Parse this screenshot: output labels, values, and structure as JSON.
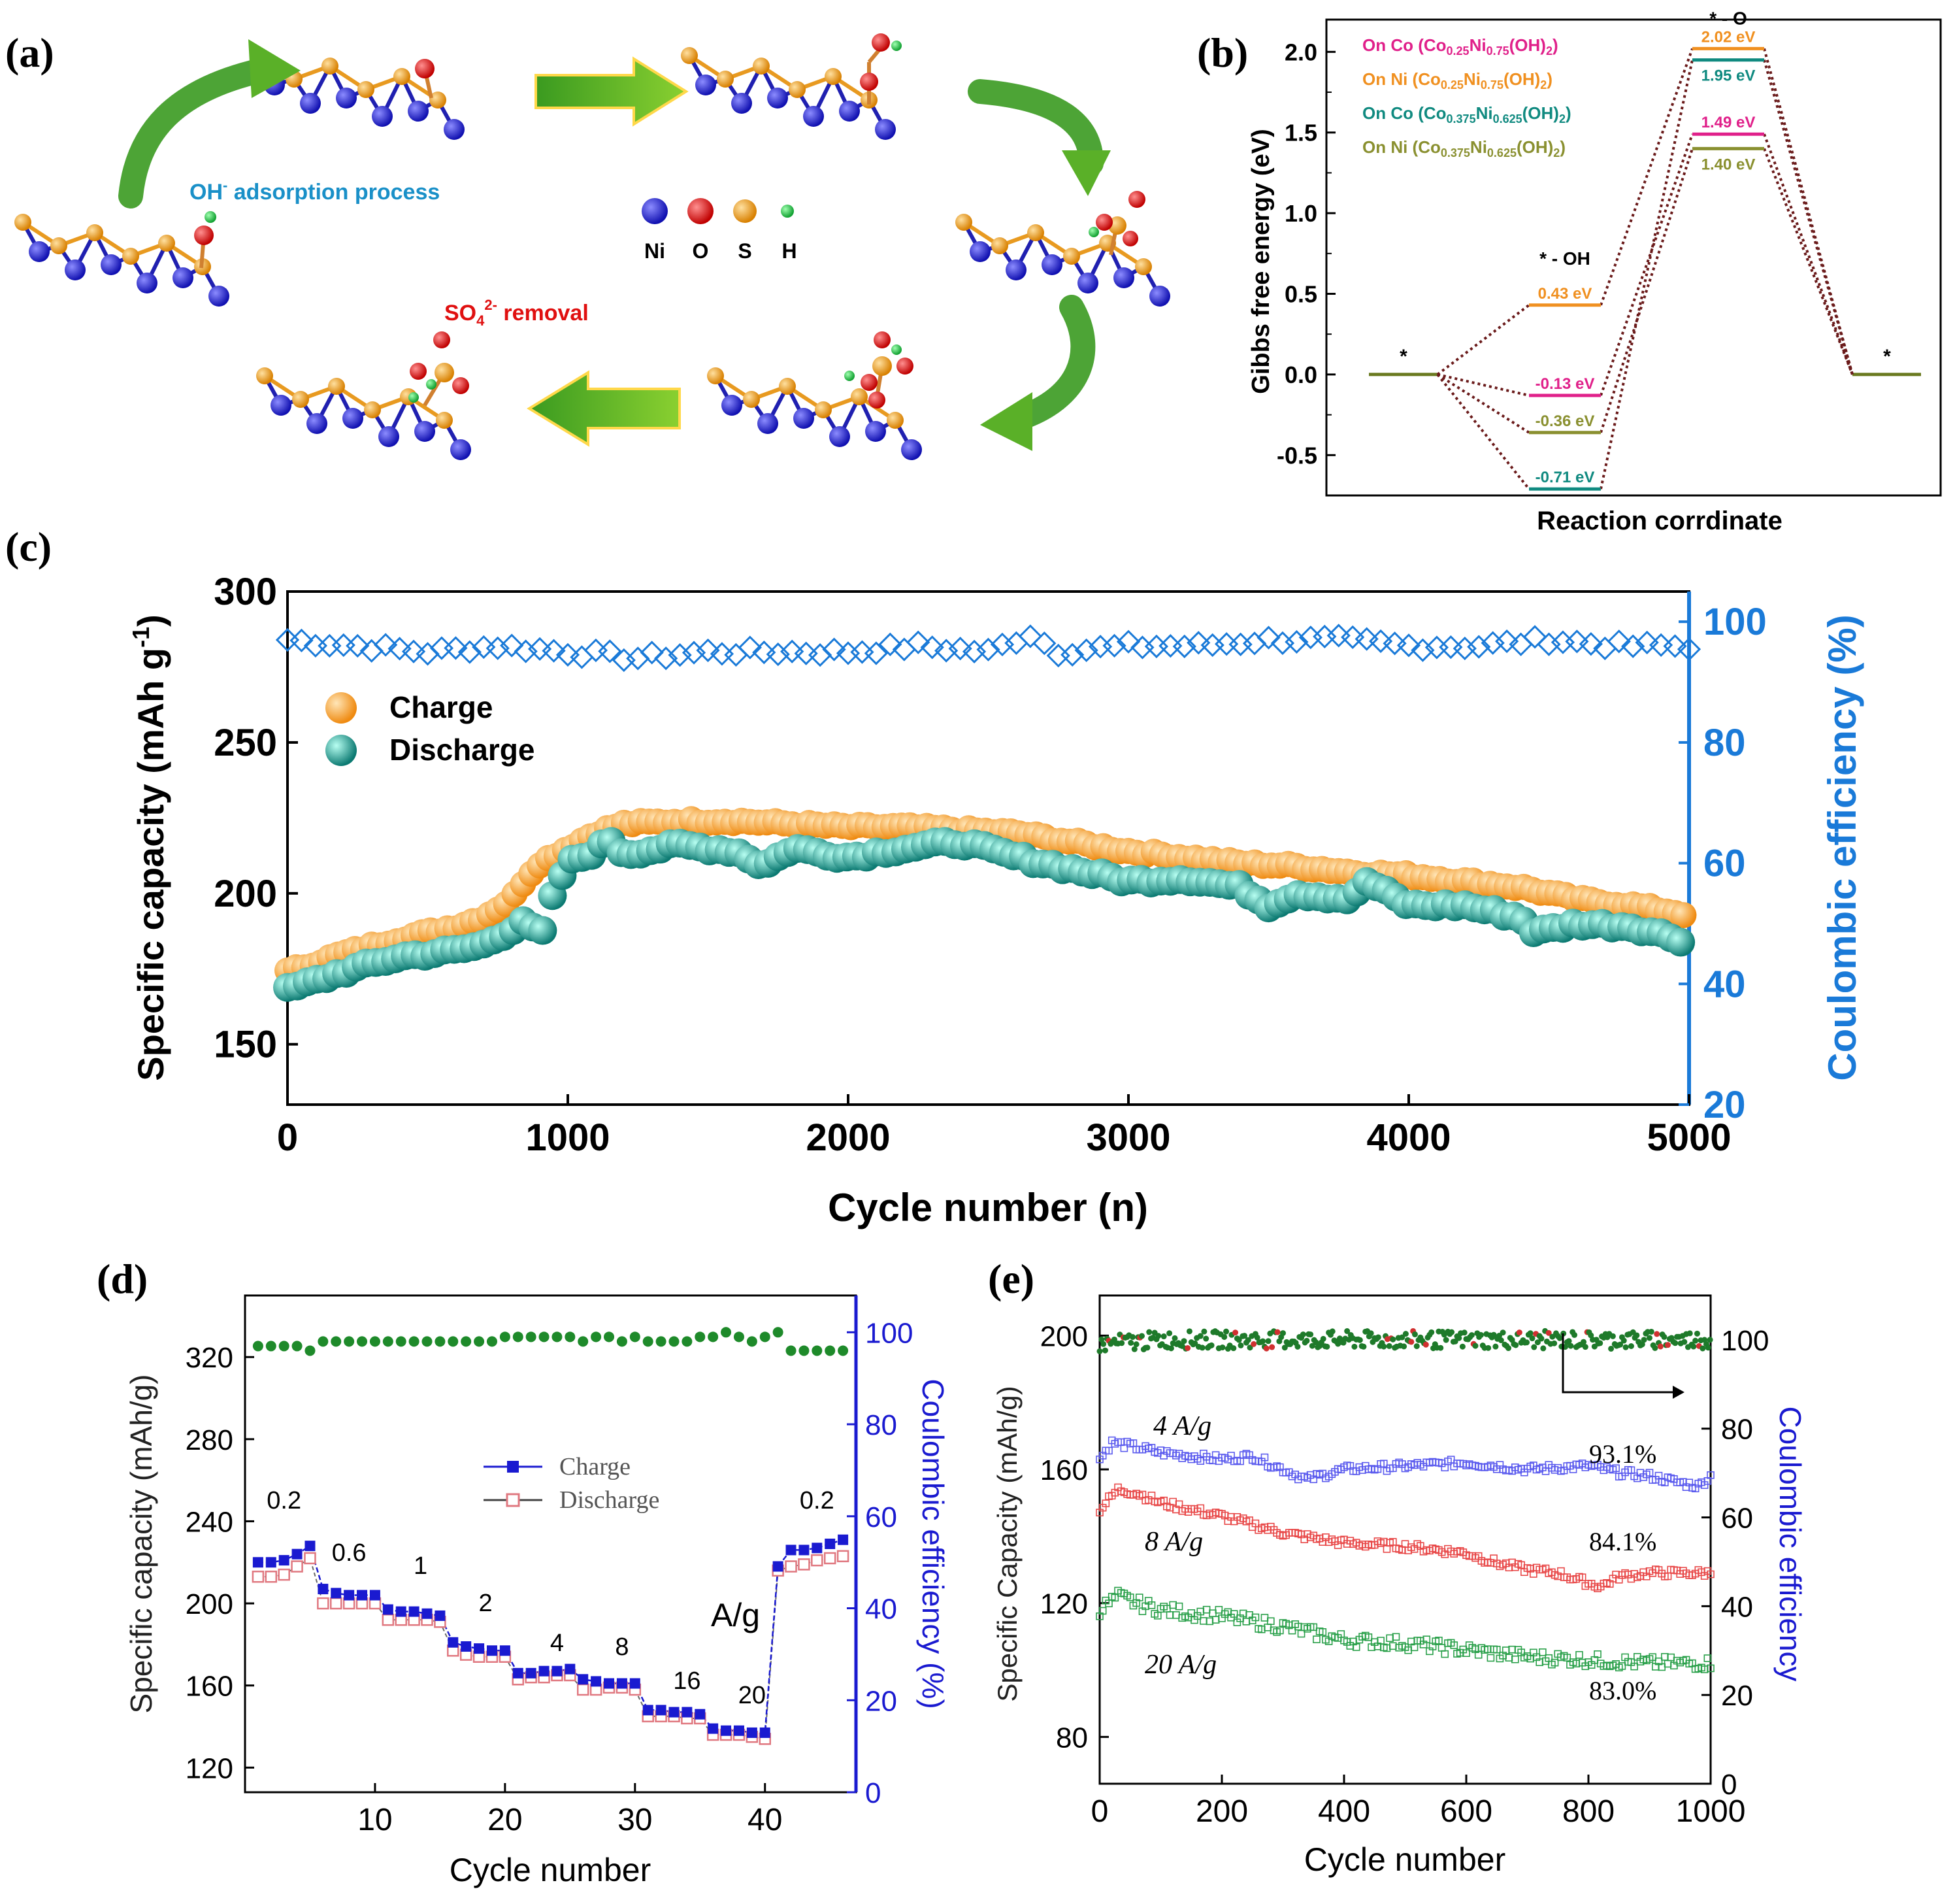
{
  "panel_labels": [
    "(a)",
    "(b)",
    "(c)",
    "(d)",
    "(e)"
  ],
  "schematic": {
    "oh_label": "OH",
    "oh_sup": "-",
    "oh_rest": " adsorption process",
    "so4_label": "SO",
    "so4_sub": "4",
    "so4_sup": "2-",
    "so4_rest": " removal",
    "legend": [
      "Ni",
      "O",
      "S",
      "H"
    ],
    "colors": {
      "Ni": "#1a1ad0",
      "O": "#e01010",
      "S": "#f0a020",
      "H": "#20c040"
    }
  },
  "chart_data": [
    {
      "id": "b",
      "type": "line",
      "title": "",
      "xlabel": "Reaction corrdinate",
      "ylabel": "Gibbs free energy (eV)",
      "ylim": [
        -0.75,
        2.2
      ],
      "yticks": [
        "2.0",
        "1.5",
        "1.0",
        "0.5",
        "0.0",
        "-0.5"
      ],
      "states": [
        "*",
        "* - OH",
        "* - O",
        "*"
      ],
      "legend": [
        {
          "pre": "On Co (Co",
          "s1": "0.25",
          "mid": "Ni",
          "s2": "0.75",
          "post": "(OH)",
          "s3": "2",
          "end": ")",
          "color": "#e0208a"
        },
        {
          "pre": "On Ni (Co",
          "s1": "0.25",
          "mid": "Ni",
          "s2": "0.75",
          "post": "(OH)",
          "s3": "2",
          "end": ")",
          "color": "#f09020"
        },
        {
          "pre": "On Co (Co",
          "s1": "0.375",
          "mid": "Ni",
          "s2": "0.625",
          "post": "(OH)",
          "s3": "2",
          "end": ")",
          "color": "#108a80"
        },
        {
          "pre": "On Ni (Co",
          "s1": "0.375",
          "mid": "Ni",
          "s2": "0.625",
          "post": "(OH)",
          "s3": "2",
          "end": ")",
          "color": "#8a9030"
        }
      ],
      "series": [
        {
          "name": "On Co (Co0.25Ni0.75(OH)2)",
          "values": [
            0,
            -0.13,
            1.49,
            0
          ],
          "labels": [
            "-0.13 eV",
            "1.49 eV"
          ],
          "color": "#e0208a"
        },
        {
          "name": "On Ni (Co0.25Ni0.75(OH)2)",
          "values": [
            0,
            0.43,
            2.02,
            0
          ],
          "labels": [
            "0.43 eV",
            "2.02 eV"
          ],
          "color": "#f09020"
        },
        {
          "name": "On Co (Co0.375Ni0.625(OH)2)",
          "values": [
            0,
            -0.71,
            1.95,
            0
          ],
          "labels": [
            "-0.71 eV",
            "1.95 eV"
          ],
          "color": "#108a80"
        },
        {
          "name": "On Ni (Co0.375Ni0.625(OH)2)",
          "values": [
            0,
            -0.36,
            1.4,
            0
          ],
          "labels": [
            "-0.36 eV",
            "1.40 eV"
          ],
          "color": "#8a9030"
        }
      ]
    },
    {
      "id": "c",
      "type": "scatter",
      "xlabel": "Cycle number (n)",
      "ylabel": "Specific capacity (mAh g",
      "ylabel_sup": "-1",
      "ylabel_end": ")",
      "y2label": "Coulombic efficiency (%)",
      "xlim": [
        0,
        5000
      ],
      "ylim": [
        130,
        300
      ],
      "y2lim": [
        20,
        105
      ],
      "xticks": [
        0,
        1000,
        2000,
        3000,
        4000,
        5000
      ],
      "yticks": [
        150,
        200,
        250,
        300
      ],
      "y2ticks": [
        20,
        40,
        60,
        80,
        100
      ],
      "legend": [
        "Charge",
        "Discharge"
      ],
      "series": [
        {
          "name": "Charge",
          "color": "#f39a2a",
          "x": [
            0,
            200,
            400,
            600,
            700,
            800,
            850,
            900,
            1000,
            1100,
            1200,
            1400,
            1600,
            1800,
            2000,
            2200,
            2400,
            2600,
            2800,
            3000,
            3200,
            3400,
            3600,
            3800,
            4000,
            4200,
            4400,
            4600,
            4800,
            5000
          ],
          "values": [
            174,
            180,
            185,
            189,
            192,
            198,
            205,
            210,
            215,
            220,
            223,
            224,
            224,
            223,
            222,
            222,
            221,
            220,
            217,
            214,
            212,
            210,
            209,
            207,
            206,
            204,
            202,
            198,
            196,
            193
          ]
        },
        {
          "name": "Discharge",
          "color": "#1a8f88",
          "x": [
            0,
            200,
            400,
            600,
            700,
            800,
            850,
            900,
            950,
            1000,
            1100,
            1150,
            1200,
            1400,
            1600,
            1700,
            1800,
            2000,
            2200,
            2400,
            2600,
            2800,
            3000,
            3200,
            3400,
            3500,
            3600,
            3800,
            3850,
            4000,
            4200,
            4400,
            4450,
            4600,
            4800,
            5000
          ],
          "values": [
            168,
            174,
            179,
            181,
            183,
            188,
            192,
            184,
            200,
            210,
            214,
            218,
            213,
            216,
            214,
            209,
            215,
            212,
            215,
            217,
            212,
            208,
            204,
            205,
            202,
            196,
            200,
            198,
            204,
            196,
            196,
            192,
            187,
            190,
            189,
            184
          ]
        },
        {
          "name": "Coulombic efficiency",
          "color": "#1a7ad8",
          "axis": "right",
          "x": [
            0,
            250,
            500,
            750,
            1000,
            1250,
            1500,
            1750,
            2000,
            2250,
            2500,
            2650,
            2750,
            3000,
            3250,
            3500,
            3750,
            4000,
            4250,
            4500,
            4750,
            5000
          ],
          "values": [
            97,
            96,
            95,
            96,
            95,
            94,
            95,
            95,
            95,
            96,
            95,
            98,
            95,
            96,
            96,
            97,
            97,
            96,
            96,
            97,
            96,
            96
          ]
        }
      ]
    },
    {
      "id": "d",
      "type": "line",
      "xlabel": "Cycle number",
      "ylabel": "Specific capacity (mAh/g)",
      "y2label": "Coulombic efficiency (%)",
      "xlim": [
        0,
        47
      ],
      "ylim": [
        108,
        350
      ],
      "y2lim": [
        0,
        108
      ],
      "xticks": [
        10,
        20,
        30,
        40
      ],
      "yticks": [
        120,
        160,
        200,
        240,
        280,
        320
      ],
      "y2ticks": [
        0,
        20,
        40,
        60,
        80,
        100
      ],
      "legend": [
        "Charge",
        "Discharge"
      ],
      "rate_unit": "A/g",
      "rates": [
        "0.2",
        "0.6",
        "1",
        "2",
        "4",
        "8",
        "16",
        "20",
        "0.2"
      ],
      "series": [
        {
          "name": "Charge",
          "color": "#1a1ad0",
          "x": [
            1,
            2,
            3,
            4,
            5,
            6,
            7,
            8,
            9,
            10,
            11,
            12,
            13,
            14,
            15,
            16,
            17,
            18,
            19,
            20,
            21,
            22,
            23,
            24,
            25,
            26,
            27,
            28,
            29,
            30,
            31,
            32,
            33,
            34,
            35,
            36,
            37,
            38,
            39,
            40,
            41,
            42,
            43,
            44,
            45,
            46
          ],
          "values": [
            220,
            220,
            221,
            224,
            228,
            207,
            205,
            204,
            204,
            204,
            197,
            196,
            196,
            195,
            194,
            181,
            179,
            178,
            177,
            177,
            166,
            166,
            167,
            167,
            168,
            163,
            162,
            161,
            161,
            161,
            148,
            148,
            147,
            147,
            146,
            139,
            138,
            138,
            137,
            137,
            218,
            226,
            226,
            227,
            229,
            231
          ]
        },
        {
          "name": "Discharge",
          "color": "#e07880",
          "x": [
            1,
            2,
            3,
            4,
            5,
            6,
            7,
            8,
            9,
            10,
            11,
            12,
            13,
            14,
            15,
            16,
            17,
            18,
            19,
            20,
            21,
            22,
            23,
            24,
            25,
            26,
            27,
            28,
            29,
            30,
            31,
            32,
            33,
            34,
            35,
            36,
            37,
            38,
            39,
            40,
            41,
            42,
            43,
            44,
            45,
            46
          ],
          "values": [
            213,
            213,
            214,
            218,
            222,
            200,
            200,
            200,
            200,
            200,
            192,
            192,
            192,
            192,
            191,
            177,
            175,
            174,
            174,
            174,
            163,
            164,
            164,
            165,
            165,
            158,
            158,
            159,
            159,
            158,
            145,
            145,
            145,
            144,
            144,
            136,
            136,
            136,
            135,
            134,
            216,
            218,
            219,
            221,
            222,
            223
          ]
        },
        {
          "name": "Coulombic efficiency",
          "color": "#1e8a2a",
          "axis": "right",
          "x": [
            1,
            2,
            3,
            4,
            5,
            6,
            7,
            8,
            9,
            10,
            11,
            12,
            13,
            14,
            15,
            16,
            17,
            18,
            19,
            20,
            21,
            22,
            23,
            24,
            25,
            26,
            27,
            28,
            29,
            30,
            31,
            32,
            33,
            34,
            35,
            36,
            37,
            38,
            39,
            40,
            41,
            42,
            43,
            44,
            45,
            46
          ],
          "values": [
            97,
            97,
            97,
            97,
            96,
            98,
            98,
            98,
            98,
            98,
            98,
            98,
            98,
            98,
            98,
            98,
            98,
            98,
            98,
            99,
            99,
            99,
            99,
            99,
            99,
            98,
            99,
            99,
            98,
            99,
            98,
            98,
            98,
            98,
            99,
            99,
            100,
            99,
            98,
            99,
            100,
            96,
            96,
            96,
            96,
            96
          ]
        }
      ]
    },
    {
      "id": "e",
      "type": "scatter",
      "xlabel": "Cycle number",
      "ylabel": "Specific Capacity (mAh/g)",
      "y2label": "Coulombic efficiency",
      "xlim": [
        0,
        1000
      ],
      "ylim": [
        66,
        212
      ],
      "y2lim": [
        0,
        110
      ],
      "xticks": [
        0,
        200,
        400,
        600,
        800,
        1000
      ],
      "yticks": [
        80,
        120,
        160,
        200
      ],
      "y2ticks": [
        0,
        20,
        40,
        60,
        80,
        100
      ],
      "annotations": [
        "93.1%",
        "84.1%",
        "83.0%"
      ],
      "series": [
        {
          "name": "4 A/g",
          "color": "#5a5aee",
          "x": [
            0,
            20,
            50,
            100,
            200,
            250,
            300,
            340,
            400,
            500,
            600,
            700,
            800,
            850,
            900,
            950,
            980,
            1000
          ],
          "values": [
            163,
            168,
            167,
            165,
            163,
            164,
            160,
            157,
            160,
            161,
            162,
            160,
            161,
            159,
            158,
            156,
            155,
            158
          ]
        },
        {
          "name": "8 A/g",
          "color": "#e84848",
          "x": [
            0,
            30,
            60,
            100,
            200,
            300,
            400,
            500,
            600,
            650,
            700,
            750,
            800,
            820,
            850,
            900,
            1000
          ],
          "values": [
            148,
            154,
            153,
            150,
            146,
            141,
            138,
            137,
            135,
            132,
            130,
            129,
            126,
            125,
            128,
            129,
            129
          ]
        },
        {
          "name": "20 A/g",
          "color": "#2aa04a",
          "x": [
            0,
            30,
            60,
            100,
            200,
            300,
            400,
            500,
            600,
            700,
            800,
            900,
            1000
          ],
          "values": [
            118,
            122,
            120,
            118,
            116,
            113,
            109,
            108,
            106,
            104,
            103,
            102,
            102
          ]
        },
        {
          "name": "Coulombic efficiency",
          "color": "#1e7a2a",
          "axis": "right",
          "x": [
            0,
            100,
            200,
            300,
            400,
            500,
            600,
            700,
            800,
            900,
            1000
          ],
          "values": [
            99,
            100,
            100,
            100,
            100,
            100,
            100,
            100,
            100,
            100,
            100
          ]
        }
      ]
    }
  ]
}
